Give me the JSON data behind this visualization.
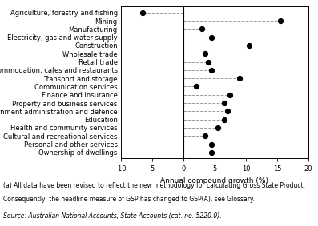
{
  "categories": [
    "Agriculture, forestry and fishing",
    "Mining",
    "Manufacturing",
    "Electricity, gas and water supply",
    "Construction",
    "Wholesale trade",
    "Retail trade",
    "Accommodation, cafes and restaurants",
    "Transport and storage",
    "Communication services",
    "Finance and insurance",
    "Property and business services",
    "Government administration and defence",
    "Education",
    "Health and community services",
    "Cultural and recreational services",
    "Personal and other services",
    "Ownership of dwellings"
  ],
  "values": [
    -6.5,
    15.5,
    3.0,
    4.5,
    10.5,
    3.5,
    4.0,
    4.5,
    9.0,
    2.0,
    7.5,
    6.5,
    7.0,
    6.5,
    5.5,
    3.5,
    4.5,
    4.5
  ],
  "xlim": [
    -10,
    20
  ],
  "xticks": [
    -10,
    -5,
    0,
    5,
    10,
    15,
    20
  ],
  "xlabel": "Annual compound growth (%)",
  "dot_color": "#000000",
  "dot_size": 18,
  "line_color": "#999999",
  "line_style": "--",
  "footnote1": "(a) All data have been revised to reflect the new methodology for calculating Gross State Product.",
  "footnote2": "Consequently, the headline measure of GSP has changed to GSP(A), see Glossary.",
  "source": "Source: Australian National Accounts, State Accounts (cat. no. 5220.0).",
  "label_fontsize": 6.0,
  "tick_fontsize": 6.0,
  "xlabel_fontsize": 6.5,
  "footnote_fontsize": 5.5,
  "source_fontsize": 5.5
}
